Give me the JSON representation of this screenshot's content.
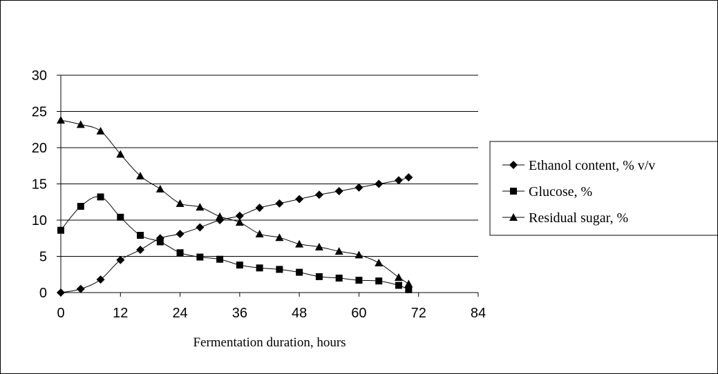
{
  "chart_data": {
    "type": "line",
    "title": "",
    "xlabel": "Fermentation duration, hours",
    "ylabel": "",
    "xlim": [
      0,
      84
    ],
    "ylim": [
      0,
      30
    ],
    "xticks": [
      0,
      12,
      24,
      36,
      48,
      60,
      72,
      84
    ],
    "yticks": [
      0,
      5,
      10,
      15,
      20,
      25,
      30
    ],
    "grid": "horizontal",
    "legend_position": "right",
    "x": [
      0,
      4,
      8,
      12,
      16,
      20,
      24,
      28,
      32,
      36,
      40,
      44,
      48,
      52,
      56,
      60,
      64,
      68,
      70
    ],
    "series": [
      {
        "name": "Ethanol content, % v/v",
        "marker": "diamond",
        "values": [
          0.0,
          0.5,
          1.8,
          4.5,
          5.9,
          7.5,
          8.1,
          9.0,
          10.0,
          10.6,
          11.7,
          12.3,
          12.9,
          13.5,
          14.0,
          14.5,
          15.0,
          15.5,
          15.9
        ]
      },
      {
        "name": "Glucose, %",
        "marker": "square",
        "values": [
          8.6,
          11.9,
          13.2,
          10.4,
          7.9,
          7.0,
          5.5,
          4.9,
          4.6,
          3.8,
          3.4,
          3.2,
          2.8,
          2.2,
          2.0,
          1.7,
          1.6,
          1.0,
          0.4
        ]
      },
      {
        "name": "Residual sugar, %",
        "marker": "triangle",
        "values": [
          23.8,
          23.2,
          22.3,
          19.1,
          16.1,
          14.3,
          12.3,
          11.8,
          10.5,
          9.7,
          8.1,
          7.6,
          6.7,
          6.3,
          5.7,
          5.2,
          4.1,
          2.1,
          1.2
        ]
      }
    ]
  }
}
